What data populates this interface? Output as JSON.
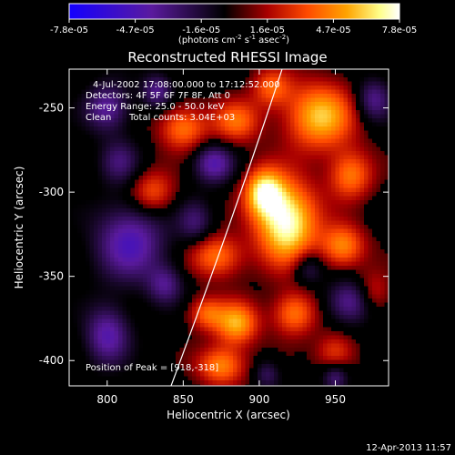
{
  "colorbar": {
    "ticks": [
      "-7.8e-05",
      "-4.7e-05",
      "-1.6e-05",
      "1.6e-05",
      "4.7e-05",
      "7.8e-05"
    ],
    "range": [
      -7.8e-05,
      7.8e-05
    ]
  },
  "footer": {
    "timestamp": "12-Apr-2013 11:57"
  },
  "chart_data": {
    "type": "heatmap",
    "title": "Reconstructed RHESSI Image",
    "xlabel": "Heliocentric X (arcsec)",
    "ylabel": "Heliocentric Y (arcsec)",
    "xlim": [
      775,
      985
    ],
    "ylim": [
      -415,
      -227
    ],
    "x_ticks": [
      800,
      850,
      900,
      950
    ],
    "y_ticks": [
      -250,
      -300,
      -350,
      -400
    ],
    "colormap": [
      "#1400ff",
      "#5a1a9e",
      "#000000",
      "#a80000",
      "#ff4a00",
      "#ffa300",
      "#ffff8a",
      "#ffffff"
    ],
    "annotations": {
      "date_range": "4-Jul-2002 17:08:00.000 to 17:12:52.000",
      "detectors": "Detectors: 4F 5F 6F 7F 8F, Att 0",
      "energy": "Energy Range: 25.0 - 50.0 keV",
      "method": "Clean",
      "counts": "Total counts: 3.04E+03",
      "peak": "Position of Peak = [918,-318]"
    },
    "peak": [
      918,
      -318
    ],
    "limb": [
      [
        842,
        -415
      ],
      [
        882,
        -318
      ],
      [
        915,
        -227
      ]
    ],
    "sources": [
      {
        "x": 918,
        "y": -318,
        "sx": 14,
        "sy": 17,
        "a": 1.0
      },
      {
        "x": 903,
        "y": -300,
        "sx": 9,
        "sy": 10,
        "a": 0.8
      },
      {
        "x": 940,
        "y": -255,
        "sx": 16,
        "sy": 14,
        "a": 0.75
      },
      {
        "x": 960,
        "y": -290,
        "sx": 10,
        "sy": 10,
        "a": 0.55
      },
      {
        "x": 955,
        "y": -332,
        "sx": 10,
        "sy": 9,
        "a": 0.6
      },
      {
        "x": 908,
        "y": -238,
        "sx": 9,
        "sy": 8,
        "a": 0.45
      },
      {
        "x": 885,
        "y": -258,
        "sx": 11,
        "sy": 9,
        "a": 0.5
      },
      {
        "x": 850,
        "y": -262,
        "sx": 11,
        "sy": 9,
        "a": 0.55
      },
      {
        "x": 830,
        "y": -300,
        "sx": 10,
        "sy": 9,
        "a": 0.45
      },
      {
        "x": 872,
        "y": -338,
        "sx": 12,
        "sy": 9,
        "a": 0.55
      },
      {
        "x": 885,
        "y": -378,
        "sx": 10,
        "sy": 9,
        "a": 0.7
      },
      {
        "x": 865,
        "y": -372,
        "sx": 8,
        "sy": 7,
        "a": 0.45
      },
      {
        "x": 923,
        "y": -372,
        "sx": 10,
        "sy": 9,
        "a": 0.55
      },
      {
        "x": 875,
        "y": -403,
        "sx": 11,
        "sy": 8,
        "a": 0.6
      },
      {
        "x": 950,
        "y": -395,
        "sx": 9,
        "sy": 8,
        "a": 0.4
      },
      {
        "x": 975,
        "y": -360,
        "sx": 8,
        "sy": 9,
        "a": 0.35
      },
      {
        "x": 800,
        "y": -250,
        "sx": 10,
        "sy": 10,
        "a": -0.5
      },
      {
        "x": 808,
        "y": -282,
        "sx": 9,
        "sy": 9,
        "a": -0.35
      },
      {
        "x": 815,
        "y": -330,
        "sx": 16,
        "sy": 16,
        "a": -0.6
      },
      {
        "x": 800,
        "y": -385,
        "sx": 10,
        "sy": 12,
        "a": -0.55
      },
      {
        "x": 838,
        "y": -355,
        "sx": 8,
        "sy": 8,
        "a": -0.4
      },
      {
        "x": 858,
        "y": -318,
        "sx": 8,
        "sy": 9,
        "a": -0.35
      },
      {
        "x": 833,
        "y": -240,
        "sx": 7,
        "sy": 7,
        "a": -0.45
      },
      {
        "x": 870,
        "y": -283,
        "sx": 9,
        "sy": 8,
        "a": -0.55
      },
      {
        "x": 975,
        "y": -245,
        "sx": 8,
        "sy": 9,
        "a": -0.45
      },
      {
        "x": 960,
        "y": -365,
        "sx": 11,
        "sy": 9,
        "a": -0.5
      },
      {
        "x": 932,
        "y": -345,
        "sx": 7,
        "sy": 7,
        "a": -0.35
      },
      {
        "x": 950,
        "y": -410,
        "sx": 6,
        "sy": 6,
        "a": -0.4
      },
      {
        "x": 905,
        "y": -408,
        "sx": 6,
        "sy": 6,
        "a": -0.3
      }
    ]
  }
}
